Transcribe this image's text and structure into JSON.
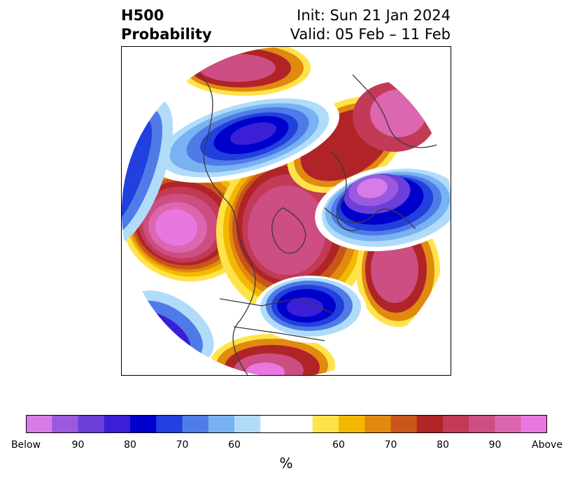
{
  "title": {
    "left_line1": "H500",
    "left_line2": "Probability",
    "init": "Init: Sun 21 Jan 2024",
    "valid": "Valid: 05 Feb – 11 Feb"
  },
  "colorbar": {
    "colors": [
      "#d77be6",
      "#9b59e0",
      "#6b3fd8",
      "#3a1fd6",
      "#0000cc",
      "#2240dd",
      "#4f7be8",
      "#78b2f2",
      "#b0dcfa",
      "#ffffff",
      "#ffe34a",
      "#f5b800",
      "#e08a10",
      "#c85618",
      "#b02428",
      "#c23a56",
      "#cc4e82",
      "#dc66b0",
      "#e878e0"
    ],
    "ticks": [
      {
        "label": "Below",
        "index": 0
      },
      {
        "label": "90",
        "index": 2
      },
      {
        "label": "80",
        "index": 4
      },
      {
        "label": "70",
        "index": 6
      },
      {
        "label": "60",
        "index": 8
      },
      {
        "label": "60",
        "index": 11
      },
      {
        "label": "70",
        "index": 13
      },
      {
        "label": "80",
        "index": 15
      },
      {
        "label": "90",
        "index": 17
      },
      {
        "label": "Above",
        "index": 19
      }
    ],
    "unit": "%"
  }
}
